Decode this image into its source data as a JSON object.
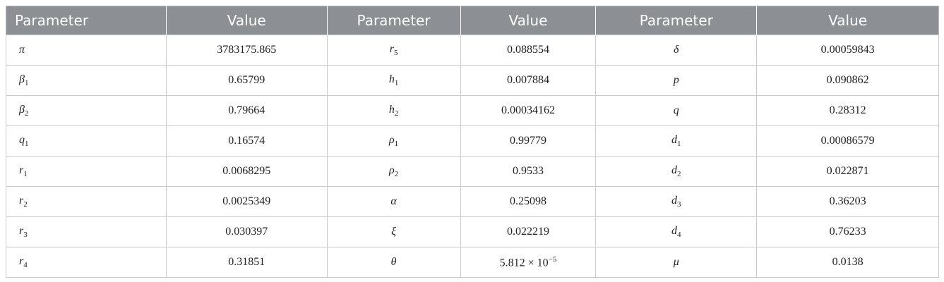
{
  "table": {
    "header": [
      "Parameter",
      "Value",
      "Parameter",
      "Value",
      "Parameter",
      "Value"
    ],
    "rows": [
      [
        {
          "sym": "π"
        },
        "3783175.865",
        {
          "sym": "r",
          "sub": "5"
        },
        "0.088554",
        {
          "sym": "δ"
        },
        "0.00059843"
      ],
      [
        {
          "sym": "β",
          "sub": "1"
        },
        "0.65799",
        {
          "sym": "h",
          "sub": "1"
        },
        "0.007884",
        {
          "sym": "p"
        },
        "0.090862"
      ],
      [
        {
          "sym": "β",
          "sub": "2"
        },
        "0.79664",
        {
          "sym": "h",
          "sub": "2"
        },
        "0.00034162",
        {
          "sym": "q"
        },
        "0.28312"
      ],
      [
        {
          "sym": "q",
          "sub": "1"
        },
        "0.16574",
        {
          "sym": "ρ",
          "sub": "1"
        },
        "0.99779",
        {
          "sym": "d",
          "sub": "1"
        },
        "0.00086579"
      ],
      [
        {
          "sym": "r",
          "sub": "1"
        },
        "0.0068295",
        {
          "sym": "ρ",
          "sub": "2"
        },
        "0.9533",
        {
          "sym": "d",
          "sub": "2"
        },
        "0.022871"
      ],
      [
        {
          "sym": "r",
          "sub": "2"
        },
        "0.0025349",
        {
          "sym": "α"
        },
        "0.25098",
        {
          "sym": "d",
          "sub": "3"
        },
        "0.36203"
      ],
      [
        {
          "sym": "r",
          "sub": "3"
        },
        "0.030397",
        {
          "sym": "ξ"
        },
        "0.022219",
        {
          "sym": "d",
          "sub": "4"
        },
        "0.76233"
      ],
      [
        {
          "sym": "r",
          "sub": "4"
        },
        "0.31851",
        {
          "sym": "θ"
        },
        {
          "base": "5.812 × 10",
          "sup": "−5"
        },
        {
          "sym": "μ"
        },
        "0.0138"
      ]
    ]
  }
}
